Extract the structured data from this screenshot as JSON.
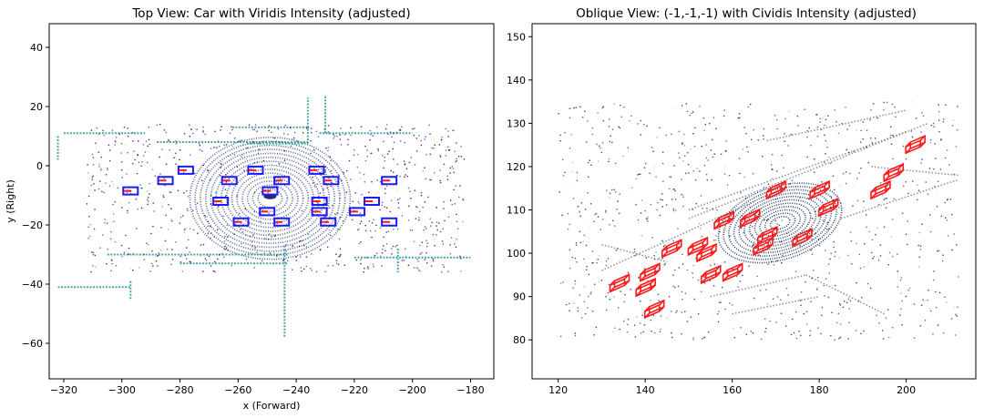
{
  "chart_data": [
    {
      "type": "scatter",
      "title": "Top View: Car with Viridis Intensity (adjusted)",
      "xlabel": "x (Forward)",
      "ylabel": "y (Right)",
      "xlim": [
        -325,
        -172
      ],
      "ylim": [
        -72,
        48
      ],
      "xticks": [
        -320,
        -300,
        -280,
        -260,
        -240,
        -220,
        -200,
        -180
      ],
      "yticks": [
        -60,
        -40,
        -20,
        0,
        20,
        40
      ],
      "colormap": "viridis",
      "box_colors": {
        "outer": "#1a1aff",
        "inner": "#ff1a1a"
      },
      "boxes": [
        {
          "x": -297,
          "y": -8.5
        },
        {
          "x": -285,
          "y": -5
        },
        {
          "x": -278,
          "y": -1.5
        },
        {
          "x": -266,
          "y": -12
        },
        {
          "x": -263,
          "y": -5
        },
        {
          "x": -259,
          "y": -19
        },
        {
          "x": -254,
          "y": -1.5
        },
        {
          "x": -249,
          "y": -8.5
        },
        {
          "x": -250,
          "y": -15.5
        },
        {
          "x": -245,
          "y": -5
        },
        {
          "x": -245,
          "y": -19
        },
        {
          "x": -233,
          "y": -1.5
        },
        {
          "x": -232,
          "y": -12
        },
        {
          "x": -232,
          "y": -15.5
        },
        {
          "x": -228,
          "y": -5
        },
        {
          "x": -229,
          "y": -19
        },
        {
          "x": -219,
          "y": -15.5
        },
        {
          "x": -214,
          "y": -12
        },
        {
          "x": -208,
          "y": -5
        },
        {
          "x": -208,
          "y": -19
        }
      ]
    },
    {
      "type": "scatter",
      "title": "Oblique View: (-1,-1,-1) with Cividis Intensity (adjusted)",
      "xlabel": "",
      "ylabel": "",
      "xlim": [
        114,
        216
      ],
      "ylim": [
        71,
        153
      ],
      "xticks": [
        120,
        140,
        160,
        180,
        200
      ],
      "yticks": [
        80,
        90,
        100,
        110,
        120,
        130,
        140,
        150
      ],
      "colormap": "cividis",
      "box_colors": {
        "outer": "#ff1a1a"
      },
      "boxes": [
        {
          "x": 134,
          "y": 93
        },
        {
          "x": 140,
          "y": 92
        },
        {
          "x": 141,
          "y": 95.5
        },
        {
          "x": 142,
          "y": 87
        },
        {
          "x": 146,
          "y": 101
        },
        {
          "x": 152,
          "y": 101.5
        },
        {
          "x": 154,
          "y": 100
        },
        {
          "x": 155,
          "y": 95
        },
        {
          "x": 158,
          "y": 107.5
        },
        {
          "x": 160,
          "y": 95.5
        },
        {
          "x": 164,
          "y": 108
        },
        {
          "x": 167,
          "y": 101.5
        },
        {
          "x": 168,
          "y": 104
        },
        {
          "x": 170,
          "y": 114.5
        },
        {
          "x": 176,
          "y": 103.5
        },
        {
          "x": 180,
          "y": 114.5
        },
        {
          "x": 182,
          "y": 110.5
        },
        {
          "x": 194,
          "y": 114.5
        },
        {
          "x": 197,
          "y": 118.5
        },
        {
          "x": 202,
          "y": 125
        }
      ]
    }
  ]
}
